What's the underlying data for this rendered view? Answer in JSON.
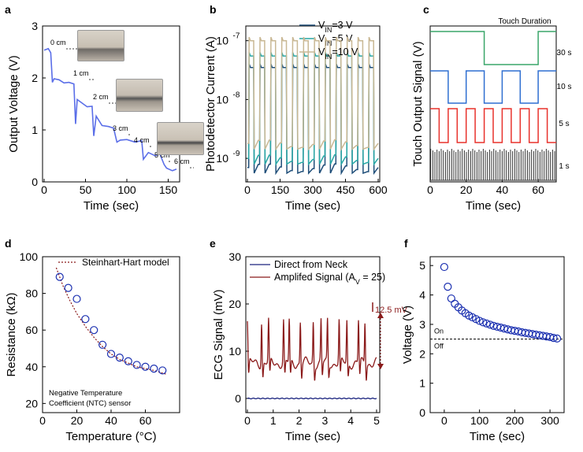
{
  "panel_labels": {
    "a": "a",
    "b": "b",
    "c": "c",
    "d": "d",
    "e": "e",
    "f": "f"
  },
  "colors": {
    "blue": "#5a6ee8",
    "dark_blue": "#1f4e79",
    "teal": "#27a6a4",
    "tan": "#c9b894",
    "green": "#3aa66a",
    "mid_blue": "#2f6fd1",
    "red": "#e8322c",
    "gray": "#333333",
    "maroon": "#8b1a1a",
    "navy": "#1a237e",
    "marker": "#1a2fb0"
  },
  "chart_data": [
    {
      "id": "a",
      "type": "line",
      "xlabel": "Time (sec)",
      "ylabel": "Output Voltage (V)",
      "xlim": [
        0,
        160
      ],
      "ylim": [
        0,
        3
      ],
      "xticks": [
        "0",
        "50",
        "100",
        "150"
      ],
      "yticks": [
        "0",
        "1",
        "2",
        "3"
      ],
      "annotations": [
        "0 cm",
        "1 cm",
        "2 cm",
        "3 cm",
        "4 cm",
        "5 cm",
        "6 cm"
      ],
      "series": [
        {
          "x": [
            0,
            5,
            8,
            10,
            12,
            18,
            24,
            30,
            36,
            38,
            40,
            46,
            52,
            58,
            60,
            63,
            70,
            78,
            84,
            88,
            92,
            100,
            110,
            118,
            120,
            126,
            134,
            140,
            145,
            148,
            155,
            160
          ],
          "values": [
            2.55,
            2.55,
            2.5,
            1.9,
            2.0,
            1.95,
            1.92,
            1.9,
            1.9,
            1.1,
            1.6,
            1.5,
            1.46,
            1.44,
            0.9,
            1.25,
            1.1,
            1.05,
            1.05,
            0.75,
            0.82,
            0.8,
            0.78,
            0.78,
            0.45,
            0.55,
            0.52,
            0.52,
            0.35,
            0.25,
            0.23,
            0.23
          ]
        }
      ]
    },
    {
      "id": "b",
      "type": "line",
      "log_y": true,
      "xlabel": "Time (sec)",
      "ylabel": "Photodetector Current (A)",
      "xlim": [
        0,
        600
      ],
      "xticks": [
        "0",
        "150",
        "300",
        "450",
        "600"
      ],
      "yticks": [
        "10-9",
        "10-8",
        "10-7"
      ],
      "cycles": 12,
      "series": [
        {
          "name": "VIN=3 V",
          "high": 3.5e-08,
          "low": 7e-10
        },
        {
          "name": "VIN=5 V",
          "high": 5.5e-08,
          "low": 1e-09
        },
        {
          "name": "VIN=10 V",
          "high": 1e-07,
          "low": 1.8e-09
        }
      ]
    },
    {
      "id": "c",
      "type": "line",
      "xlabel": "Time (sec)",
      "ylabel": "Touch Output Signal (V)",
      "xlim": [
        0,
        70
      ],
      "xticks": [
        "0",
        "20",
        "40",
        "60"
      ],
      "title": "Touch Duration",
      "series": [
        {
          "name": "30 s",
          "segments": [
            [
              0,
              30,
              "high"
            ],
            [
              30,
              60,
              "low"
            ],
            [
              60,
              70,
              "high"
            ]
          ]
        },
        {
          "name": "10 s",
          "segments": [
            [
              0,
              10,
              "high"
            ],
            [
              10,
              20,
              "low"
            ],
            [
              20,
              30,
              "high"
            ],
            [
              30,
              40,
              "low"
            ],
            [
              40,
              50,
              "high"
            ],
            [
              50,
              60,
              "low"
            ],
            [
              60,
              70,
              "high"
            ]
          ]
        },
        {
          "name": "5 s",
          "segments": [
            [
              0,
              5,
              "high"
            ],
            [
              5,
              10,
              "low"
            ],
            [
              10,
              15,
              "high"
            ],
            [
              15,
              20,
              "low"
            ],
            [
              20,
              25,
              "high"
            ],
            [
              25,
              30,
              "low"
            ],
            [
              30,
              35,
              "high"
            ],
            [
              35,
              40,
              "low"
            ],
            [
              40,
              45,
              "high"
            ],
            [
              45,
              50,
              "low"
            ],
            [
              50,
              55,
              "high"
            ],
            [
              55,
              60,
              "low"
            ],
            [
              60,
              65,
              "high"
            ],
            [
              65,
              70,
              "low"
            ]
          ]
        },
        {
          "name": "1 s",
          "pulses": 60
        }
      ]
    },
    {
      "id": "d",
      "type": "scatter",
      "xlabel": "Temperature (°C)",
      "ylabel": "Resistance (kΩ)",
      "xlim": [
        0,
        80
      ],
      "ylim": [
        15,
        100
      ],
      "xticks": [
        "0",
        "20",
        "40",
        "60"
      ],
      "yticks": [
        "20",
        "40",
        "60",
        "80",
        "100"
      ],
      "legend": "Steinhart-Hart model",
      "note_line1": "Negative Temperature",
      "note_line2": "Coefficient (NTC) sensor",
      "points": {
        "x": [
          10,
          15,
          20,
          25,
          30,
          35,
          40,
          45,
          50,
          55,
          60,
          65,
          70
        ],
        "y": [
          89,
          83,
          77,
          66,
          60,
          52,
          47,
          45,
          43,
          41,
          40,
          39,
          38
        ]
      },
      "model": {
        "x": [
          8,
          12,
          16,
          20,
          25,
          30,
          35,
          40,
          45,
          50,
          55,
          60,
          65,
          72
        ],
        "y": [
          94,
          84,
          76,
          69,
          62,
          56,
          51,
          47,
          44,
          42,
          40,
          39,
          38,
          36
        ]
      }
    },
    {
      "id": "e",
      "type": "line",
      "xlabel": "Time (sec)",
      "ylabel": "ECG Signal (mV)",
      "xlim": [
        0,
        5
      ],
      "ylim": [
        -3,
        30
      ],
      "xticks": [
        "0",
        "1",
        "2",
        "3",
        "4",
        "5"
      ],
      "yticks": [
        "0",
        "10",
        "20",
        "30"
      ],
      "annotation": "12.5 mV",
      "series": [
        {
          "name": "Direct from Neck",
          "level": 0
        },
        {
          "name": "Amplifed Signal (A",
          "name_sub": "V",
          "name_end": " = 25)",
          "baseline": 7.5,
          "peaks": [
            0.0,
            0.55,
            0.82,
            1.4,
            1.62,
            2.05,
            2.55,
            2.85,
            3.1,
            3.55,
            3.85,
            4.3,
            4.55
          ]
        }
      ]
    },
    {
      "id": "f",
      "type": "scatter",
      "xlabel": "Time (sec)",
      "ylabel": "Voltage (V)",
      "xlim": [
        -40,
        340
      ],
      "ylim": [
        0,
        5.3
      ],
      "xticks": [
        "0",
        "100",
        "200",
        "300"
      ],
      "yticks": [
        "0",
        "1",
        "2",
        "3",
        "4",
        "5"
      ],
      "threshold": 2.5,
      "threshold_labels": [
        "On",
        "Off"
      ],
      "points": {
        "x": [
          0,
          10,
          20,
          30,
          40,
          50,
          60,
          70,
          80,
          90,
          100,
          110,
          120,
          130,
          140,
          150,
          160,
          170,
          180,
          190,
          200,
          210,
          220,
          230,
          240,
          250,
          260,
          270,
          280,
          290,
          300,
          310,
          320
        ],
        "y": [
          4.95,
          4.28,
          3.88,
          3.7,
          3.58,
          3.47,
          3.38,
          3.3,
          3.24,
          3.18,
          3.12,
          3.07,
          3.03,
          2.99,
          2.95,
          2.92,
          2.89,
          2.86,
          2.83,
          2.8,
          2.78,
          2.76,
          2.73,
          2.71,
          2.69,
          2.67,
          2.65,
          2.63,
          2.61,
          2.59,
          2.57,
          2.54,
          2.52
        ]
      }
    }
  ]
}
